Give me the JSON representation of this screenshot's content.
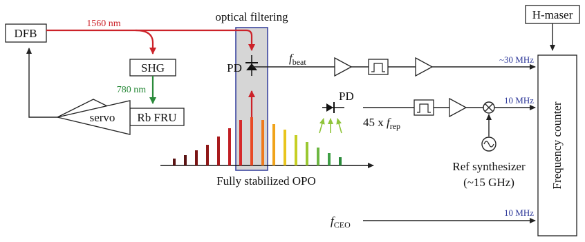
{
  "colors": {
    "red_beam": "#cc2229",
    "green_beam": "#2a8a3a",
    "filter_region": "#d6d6d6",
    "filter_border": "#3c46a0",
    "frequency_label": "#2f3a9a",
    "comb_teeth": [
      "#5a1414",
      "#5a1414",
      "#7a1414",
      "#8f1818",
      "#a81a1d",
      "#c11f24",
      "#d6282a",
      "#e84a25",
      "#ef7a1d",
      "#f0a31a",
      "#e9c51c",
      "#c6cf24",
      "#9ac832",
      "#6db742",
      "#3f9f45",
      "#2a8a3a"
    ]
  },
  "labels": {
    "dfb": "DFB",
    "wavelength_1560": "1560 nm",
    "shg": "SHG",
    "wavelength_780": "780 nm",
    "rb_fru": "Rb FRU",
    "servo": "servo",
    "optical_filtering": "optical filtering",
    "pd_main": "PD",
    "pd_secondary": "PD",
    "f_beat_base": "f",
    "f_beat_sub": "beat",
    "freq_30mhz": "~30 MHz",
    "freq_10mhz_top": "10 MHz",
    "rep_prefix": "45 x ",
    "f_rep_base": "f",
    "f_rep_sub": "rep",
    "ref_synth_line1": "Ref synthesizer",
    "ref_synth_line2": "(~15 GHz)",
    "comb_caption": "Fully stabilized OPO",
    "f_ceo_base": "f",
    "f_ceo_sub": "CEO",
    "freq_10mhz_bottom": "10 MHz",
    "h_maser": "H-maser",
    "frequency_counter": "Frequency counter"
  }
}
